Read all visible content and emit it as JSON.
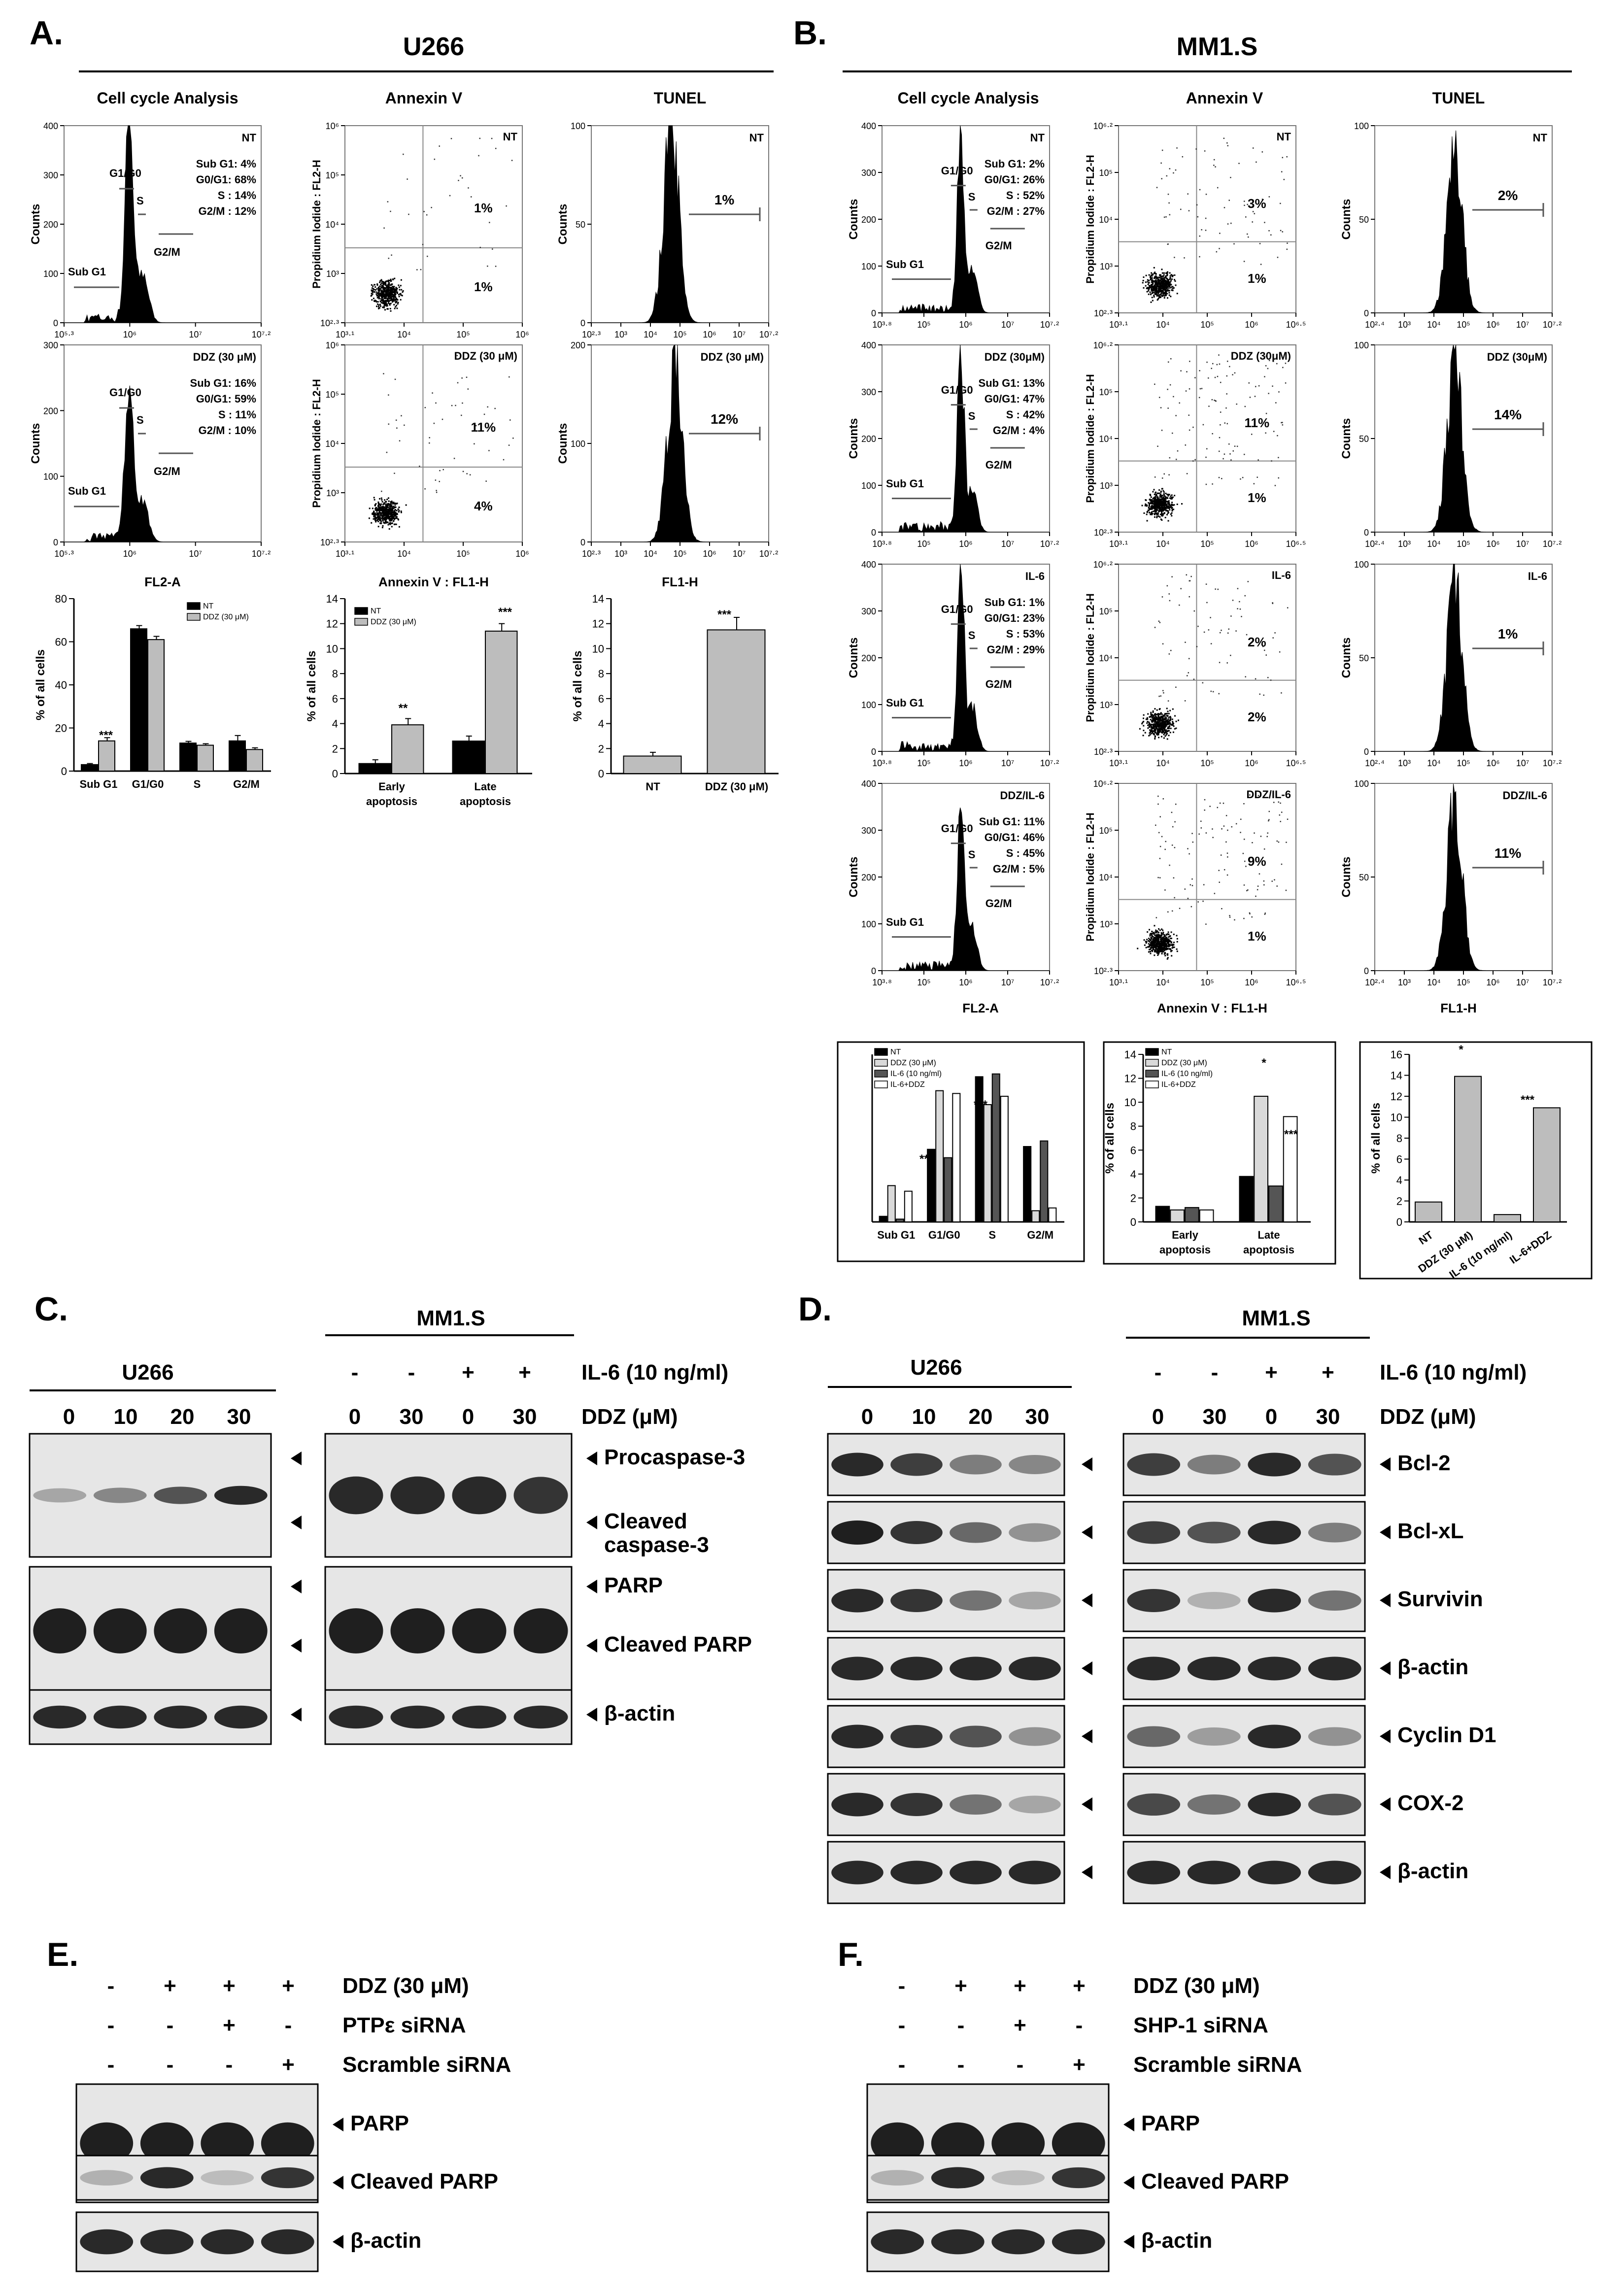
{
  "panelA": {
    "letter": "A.",
    "cell_line": "U266",
    "col_titles": [
      "Cell cycle Analysis",
      "Annexin V",
      "TUNEL"
    ],
    "cc_xaxis": "FL2-A",
    "annexin_xaxis": "Annexin V : FL1-H",
    "tunel_xaxis": "FL1-H",
    "y_counts": "Counts",
    "y_pi": "Propidium Iodide : FL2-H",
    "rows": [
      {
        "label": "NT",
        "cc_lines": [
          "Sub G1:  4%",
          "G0/G1: 68%",
          "S : 14%",
          "G2/M : 12%"
        ],
        "ann_ur": "1%",
        "ann_lr": "1%",
        "tunel_pct": "1%",
        "cc_yticks": [
          "400",
          "300",
          "200",
          "100",
          "0"
        ],
        "cc_xticks": [
          "10⁵·³",
          "10⁶",
          "10⁷",
          "10⁷·²"
        ],
        "ann_yticks": [
          "10⁶",
          "10⁵",
          "10⁴",
          "10³",
          "10²·³"
        ],
        "ann_xticks": [
          "10³·¹",
          "10⁴",
          "10⁵",
          "10⁶"
        ],
        "tun_yticks": [
          "100",
          "50",
          "0"
        ],
        "tun_xticks": [
          "10²·³",
          "10³",
          "10⁴",
          "10⁵",
          "10⁶",
          "10⁷",
          "10⁷·²"
        ]
      },
      {
        "label": "DDZ (30 μM)",
        "cc_lines": [
          "Sub G1: 16%",
          "G0/G1: 59%",
          "S : 11%",
          "G2/M : 10%"
        ],
        "ann_ur": "11%",
        "ann_lr": "4%",
        "tunel_pct": "12%",
        "cc_yticks": [
          "300",
          "200",
          "100",
          "0"
        ],
        "cc_xticks": [
          "10⁵·³",
          "10⁶",
          "10⁷",
          "10⁷·²"
        ],
        "ann_yticks": [
          "10⁶",
          "10⁵",
          "10⁴",
          "10³",
          "10²·³"
        ],
        "ann_xticks": [
          "10³·¹",
          "10⁴",
          "10⁵",
          "10⁶"
        ],
        "tun_yticks": [
          "200",
          "100",
          "0"
        ],
        "tun_xticks": [
          "10²·³",
          "10³",
          "10⁴",
          "10⁵",
          "10⁶",
          "10⁷",
          "10⁷·²"
        ]
      }
    ],
    "gate_labels": {
      "subg1": "Sub G1",
      "g1g0": "G1/G0",
      "s": "S",
      "g2m": "G2/M"
    }
  },
  "panelB": {
    "letter": "B.",
    "cell_line": "MM1.S",
    "col_titles": [
      "Cell cycle Analysis",
      "Annexin V",
      "TUNEL"
    ],
    "cc_xaxis": "FL2-A",
    "annexin_xaxis": "Annexin V : FL1-H",
    "tunel_xaxis": "FL1-H",
    "y_counts": "Counts",
    "y_pi": "Propidium Iodide : FL2-H",
    "rows": [
      {
        "label": "NT",
        "cc_lines": [
          "Sub G1:  2%",
          "G0/G1: 26%",
          "S : 52%",
          "G2/M : 27%"
        ],
        "ann_ur": "3%",
        "ann_lr": "1%",
        "tunel_pct": "2%"
      },
      {
        "label": "DDZ (30μM)",
        "cc_lines": [
          "Sub G1: 13%",
          "G0/G1: 47%",
          "S : 42%",
          "G2/M : 4%"
        ],
        "ann_ur": "11%",
        "ann_lr": "1%",
        "tunel_pct": "14%"
      },
      {
        "label": "IL-6",
        "cc_lines": [
          "Sub G1:  1%",
          "G0/G1: 23%",
          "S : 53%",
          "G2/M : 29%"
        ],
        "ann_ur": "2%",
        "ann_lr": "2%",
        "tunel_pct": "1%"
      },
      {
        "label": "DDZ/IL-6",
        "cc_lines": [
          "Sub G1: 11%",
          "G0/G1: 46%",
          "S : 45%",
          "G2/M : 5%"
        ],
        "ann_ur": "9%",
        "ann_lr": "1%",
        "tunel_pct": "11%"
      }
    ]
  },
  "chart_data": [
    {
      "id": "A-cellcycle",
      "type": "bar",
      "ylabel": "% of all cells",
      "ylim": [
        0,
        80
      ],
      "yticks": [
        "0",
        "20",
        "40",
        "60",
        "80"
      ],
      "categories": [
        "Sub G1",
        "G1/G0",
        "S",
        "G2/M"
      ],
      "series": [
        {
          "name": "NT",
          "values": [
            3,
            66,
            13,
            14
          ],
          "errors": [
            0.5,
            1.5,
            0.8,
            2.5
          ]
        },
        {
          "name": "DDZ (30 μM)",
          "values": [
            14,
            61,
            12,
            10
          ],
          "errors": [
            1.5,
            1.5,
            0.7,
            0.8
          ]
        }
      ],
      "annotations": [
        "***"
      ]
    },
    {
      "id": "A-annexin",
      "type": "bar",
      "ylabel": "% of all cells",
      "ylim": [
        0,
        14
      ],
      "yticks": [
        "0",
        "2",
        "4",
        "6",
        "8",
        "10",
        "12",
        "14"
      ],
      "categories": [
        "Early\napoptosis",
        "Late\napoptosis"
      ],
      "series": [
        {
          "name": "NT",
          "values": [
            0.8,
            2.6
          ],
          "errors": [
            0.3,
            0.4
          ]
        },
        {
          "name": "DDZ (30 μM)",
          "values": [
            3.9,
            11.4
          ],
          "errors": [
            0.5,
            0.6
          ]
        }
      ],
      "annotations": [
        "**",
        "***"
      ]
    },
    {
      "id": "A-tunel",
      "type": "bar",
      "ylabel": "% of all cells",
      "ylim": [
        0,
        14
      ],
      "yticks": [
        "0",
        "2",
        "4",
        "6",
        "8",
        "10",
        "12",
        "14"
      ],
      "categories": [
        "NT",
        "DDZ (30 μM)"
      ],
      "series": [
        {
          "values": [
            1.4,
            11.5
          ],
          "errors": [
            0.3,
            1.0
          ]
        }
      ],
      "annotations": [
        "***"
      ]
    },
    {
      "id": "B-cellcycle",
      "type": "bar",
      "categories": [
        "Sub G1",
        "G1/G0",
        "S",
        "G2/M"
      ],
      "series": [
        {
          "name": "NT",
          "values": [
            2,
            26,
            52,
            27
          ]
        },
        {
          "name": "DDZ (30 μM)",
          "values": [
            13,
            47,
            42,
            4
          ]
        },
        {
          "name": "IL-6 (10 ng/ml)",
          "values": [
            1,
            23,
            53,
            29
          ]
        },
        {
          "name": "IL-6+DDZ",
          "values": [
            11,
            46,
            45,
            5
          ]
        }
      ],
      "annotations": [
        "***",
        "***"
      ]
    },
    {
      "id": "B-annexin",
      "type": "bar",
      "ylabel": "% of all cells",
      "ylim": [
        0,
        14
      ],
      "yticks": [
        "0",
        "2",
        "4",
        "6",
        "8",
        "10",
        "12",
        "14"
      ],
      "categories": [
        "Early\napoptosis",
        "Late\napoptosis"
      ],
      "series": [
        {
          "name": "NT",
          "values": [
            1.3,
            3.8
          ]
        },
        {
          "name": "DDZ (30 μM)",
          "values": [
            1.0,
            10.5
          ]
        },
        {
          "name": "IL-6 (10 ng/ml)",
          "values": [
            1.2,
            3.0
          ]
        },
        {
          "name": "IL-6+DDZ",
          "values": [
            1.0,
            8.8
          ]
        }
      ],
      "annotations": [
        "*",
        "***"
      ]
    },
    {
      "id": "B-tunel",
      "type": "bar",
      "ylabel": "% of all cells",
      "ylim": [
        0,
        16
      ],
      "yticks": [
        "0",
        "2",
        "4",
        "6",
        "8",
        "10",
        "12",
        "14",
        "16"
      ],
      "categories": [
        "NT",
        "DDZ (30 μM)",
        "IL-6 (10 ng/ml)",
        "IL-6+DDZ"
      ],
      "series": [
        {
          "values": [
            1.9,
            13.9,
            0.7,
            10.9
          ]
        }
      ],
      "annotations": [
        "*",
        "***"
      ]
    }
  ],
  "panelC": {
    "letter": "C.",
    "u266_title": "U266",
    "u266_doses": [
      "0",
      "10",
      "20",
      "30"
    ],
    "mm1s_title": "MM1.S",
    "il6_signs": [
      "-",
      "-",
      "+",
      "+"
    ],
    "il6_label": "IL-6 (10 ng/ml)",
    "ddz_doses": [
      "0",
      "30",
      "0",
      "30"
    ],
    "ddz_label": "DDZ (μM)",
    "bands": [
      "◀ Procaspase-3",
      "◀ Cleaved",
      "caspase-3",
      "◀ PARP",
      "◀ Cleaved PARP",
      "◀ β-actin"
    ]
  },
  "panelD": {
    "letter": "D.",
    "u266_title": "U266",
    "u266_doses": [
      "0",
      "10",
      "20",
      "30"
    ],
    "mm1s_title": "MM1.S",
    "il6_signs": [
      "-",
      "-",
      "+",
      "+"
    ],
    "il6_label": "IL-6 (10 ng/ml)",
    "ddz_doses": [
      "0",
      "30",
      "0",
      "30"
    ],
    "ddz_label": "DDZ (μM)",
    "bands": [
      "Bcl-2",
      "Bcl-xL",
      "Survivin",
      "β-actin",
      "Cyclin D1",
      "COX-2",
      "β-actin"
    ]
  },
  "panelE": {
    "letter": "E.",
    "rows": [
      {
        "signs": [
          "-",
          "+",
          "+",
          "+"
        ],
        "label": "DDZ (30 μM)"
      },
      {
        "signs": [
          "-",
          "-",
          "+",
          "-"
        ],
        "label": "PTPε siRNA"
      },
      {
        "signs": [
          "-",
          "-",
          "-",
          "+"
        ],
        "label": "Scramble siRNA"
      }
    ],
    "bands": [
      "PARP",
      "Cleaved PARP",
      "β-actin"
    ]
  },
  "panelF": {
    "letter": "F.",
    "rows": [
      {
        "signs": [
          "-",
          "+",
          "+",
          "+"
        ],
        "label": "DDZ (30 μM)"
      },
      {
        "signs": [
          "-",
          "-",
          "+",
          "-"
        ],
        "label": "SHP-1 siRNA"
      },
      {
        "signs": [
          "-",
          "-",
          "-",
          "+"
        ],
        "label": "Scramble siRNA"
      }
    ],
    "bands": [
      "PARP",
      "Cleaved PARP",
      "β-actin"
    ]
  },
  "colors": {
    "black_bar": "#000000",
    "grey_bar": "#bdbdbd",
    "dark_grey_bar": "#555555",
    "white_bar": "#ffffff",
    "blot_bg": "#e6e6e6",
    "band": "#141414"
  }
}
